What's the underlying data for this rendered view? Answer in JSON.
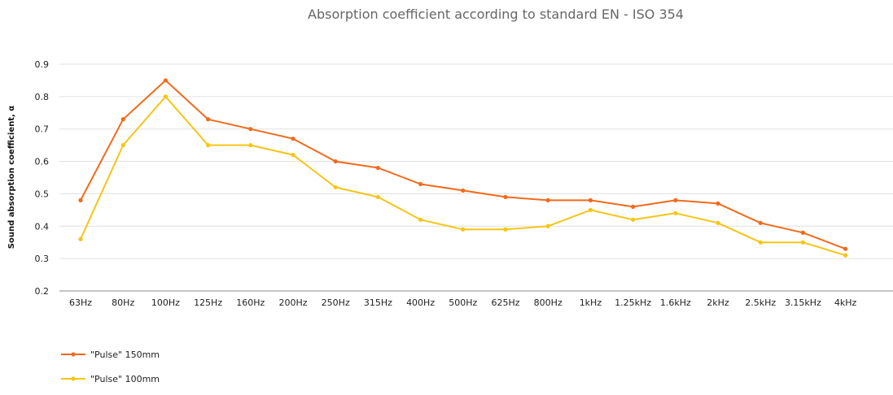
{
  "chart_data": {
    "type": "line",
    "title": "Absorption coefficient according to standard EN - ISO 354",
    "xlabel": "",
    "ylabel": "Sound absorption coefficient, α",
    "ylim": [
      0.2,
      0.9
    ],
    "yticks": [
      "0.2",
      "0.3",
      "0.4",
      "0.5",
      "0.6",
      "0.7",
      "0.8",
      "0.9"
    ],
    "grid": true,
    "legend_position": "bottom-left",
    "categories": [
      "63Hz",
      "80Hz",
      "100Hz",
      "125Hz",
      "160Hz",
      "200Hz",
      "250Hz",
      "315Hz",
      "400Hz",
      "500Hz",
      "625Hz",
      "800Hz",
      "1kHz",
      "1.25kHz",
      "1.6kHz",
      "2kHz",
      "2.5kHz",
      "3.15kHz",
      "4kHz"
    ],
    "series": [
      {
        "name": "\"Pulse\" 150mm",
        "color": "#f26a1b",
        "values": [
          0.48,
          0.73,
          0.85,
          0.73,
          0.7,
          0.67,
          0.6,
          0.58,
          0.53,
          0.51,
          0.49,
          0.48,
          0.48,
          0.46,
          0.48,
          0.47,
          0.41,
          0.38,
          0.33
        ]
      },
      {
        "name": "\"Pulse\" 100mm",
        "color": "#f6c515",
        "values": [
          0.36,
          0.65,
          0.8,
          0.65,
          0.65,
          0.62,
          0.52,
          0.49,
          0.42,
          0.39,
          0.39,
          0.4,
          0.45,
          0.42,
          0.44,
          0.41,
          0.35,
          0.35,
          0.31
        ]
      }
    ]
  }
}
